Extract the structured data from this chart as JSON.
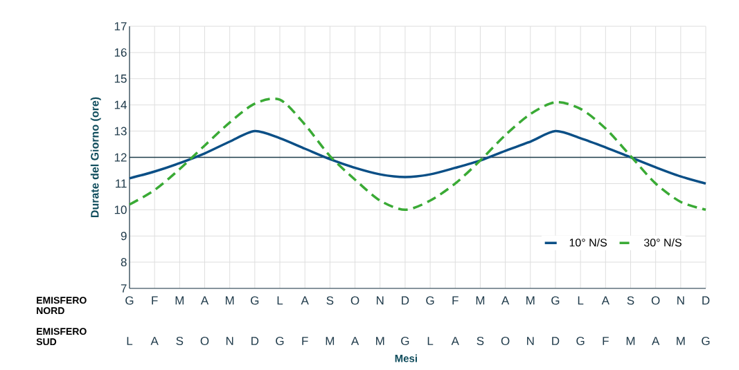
{
  "chart_data": {
    "type": "line",
    "ylabel": "Durate del Giorno (ore)",
    "xlabel": "Mesi",
    "categories": [
      "G",
      "F",
      "M",
      "A",
      "M",
      "G",
      "L",
      "A",
      "S",
      "O",
      "N",
      "D",
      "G",
      "F",
      "M",
      "A",
      "M",
      "G",
      "L",
      "A",
      "S",
      "O",
      "N",
      "D"
    ],
    "series": [
      {
        "name": "10° N/S",
        "color": "#0b4f86",
        "line_style": "solid",
        "values": [
          11.2,
          11.46,
          11.78,
          12.15,
          12.6,
          13.0,
          12.73,
          12.33,
          11.93,
          11.6,
          11.35,
          11.25,
          11.35,
          11.6,
          11.88,
          12.25,
          12.6,
          13.0,
          12.73,
          12.38,
          12.0,
          11.62,
          11.27,
          11.0
        ]
      },
      {
        "name": "30° N/S",
        "color": "#3aaa35",
        "line_style": "dashed",
        "values": [
          10.2,
          10.75,
          11.55,
          12.45,
          13.33,
          14.05,
          14.2,
          13.25,
          12.05,
          11.15,
          10.35,
          10.0,
          10.35,
          11.0,
          11.88,
          12.85,
          13.65,
          14.1,
          13.85,
          13.1,
          12.05,
          11.0,
          10.3,
          10.0
        ]
      }
    ],
    "ylim": [
      7,
      17
    ],
    "yticks": [
      7,
      8,
      9,
      10,
      11,
      12,
      13,
      14,
      15,
      16,
      17
    ],
    "grid": true,
    "legend": "bottom right",
    "marker": "none",
    "ref_lines": [
      {
        "axis": "y",
        "value": 12,
        "color": "#1d3c4a"
      }
    ],
    "annotations": [
      "EMISFERO NORD",
      "EMISFERO SUD",
      "L",
      "A",
      "S",
      "O",
      "N",
      "D",
      "G",
      "F",
      "M",
      "A",
      "M",
      "G",
      "L",
      "A",
      "S",
      "O",
      "N",
      "D",
      "G",
      "F",
      "M",
      "A",
      "M",
      "G"
    ]
  }
}
